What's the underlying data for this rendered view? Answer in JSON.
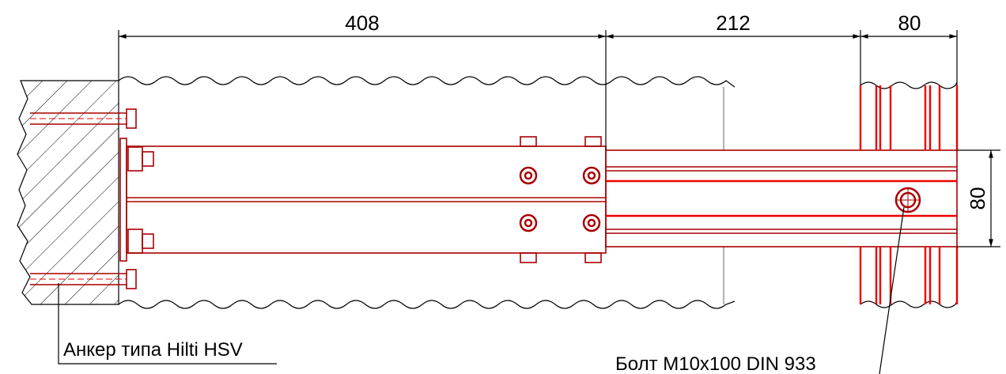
{
  "dimensions": [
    {
      "label": "408"
    },
    {
      "label": "212"
    },
    {
      "label": "80"
    },
    {
      "label": "80"
    }
  ],
  "callouts": [
    {
      "label": "Анкер типа Hilti HSV"
    },
    {
      "label": "Болт М10х100 DIN 933"
    }
  ]
}
